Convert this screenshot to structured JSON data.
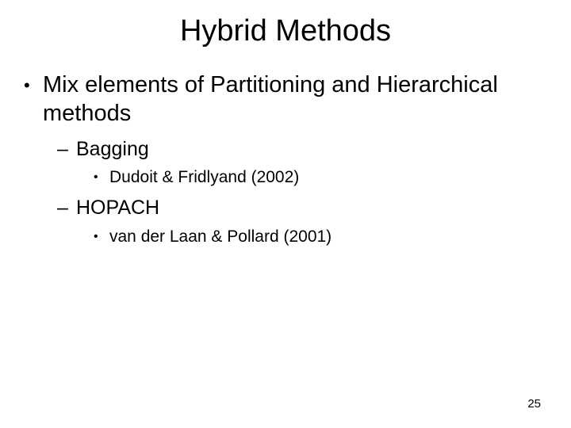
{
  "title": "Hybrid Methods",
  "bullets": {
    "main": "Mix elements of Partitioning and Hierarchical methods",
    "sub1": "Bagging",
    "sub1_ref": "Dudoit & Fridlyand (2002)",
    "sub2": "HOPACH",
    "sub2_ref": "van der Laan & Pollard (2001)"
  },
  "markers": {
    "disc": "•",
    "dash": "–"
  },
  "page_number": "25",
  "colors": {
    "background": "#ffffff",
    "text": "#000000"
  },
  "fonts": {
    "family": "Arial",
    "title_size": 38,
    "level1_size": 29,
    "level2_size": 25,
    "level3_size": 21,
    "pagenum_size": 15
  }
}
